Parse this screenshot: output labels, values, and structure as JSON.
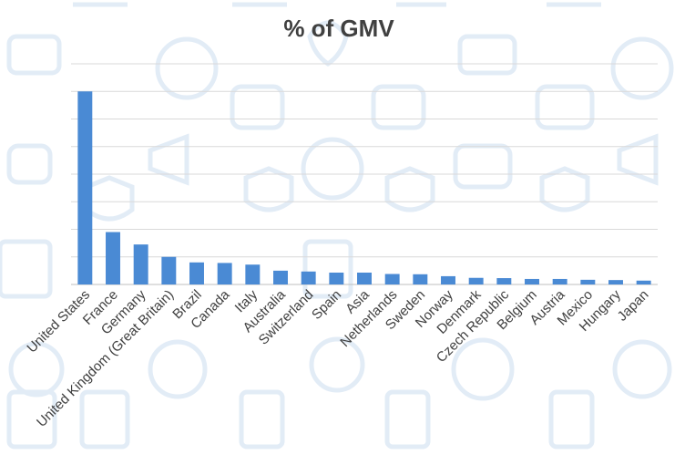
{
  "chart_data": {
    "type": "bar",
    "title": "% of GMV",
    "xlabel": "",
    "ylabel": "",
    "ylim": [
      0,
      8
    ],
    "grid": true,
    "bar_color": "#4a8ad4",
    "categories": [
      "United States",
      "France",
      "Germany",
      "United Kingdom (Great Britain)",
      "Brazil",
      "Canada",
      "Italy",
      "Australia",
      "Switzerland",
      "Spain",
      "Asia",
      "Netherlands",
      "Sweden",
      "Norway",
      "Denmark",
      "Czech Republic",
      "Belgium",
      "Austria",
      "Mexico",
      "Hungary",
      "Japan"
    ],
    "values": [
      7.0,
      1.9,
      1.45,
      1.0,
      0.8,
      0.78,
      0.72,
      0.5,
      0.47,
      0.43,
      0.43,
      0.38,
      0.37,
      0.3,
      0.24,
      0.23,
      0.2,
      0.2,
      0.17,
      0.16,
      0.14
    ]
  }
}
